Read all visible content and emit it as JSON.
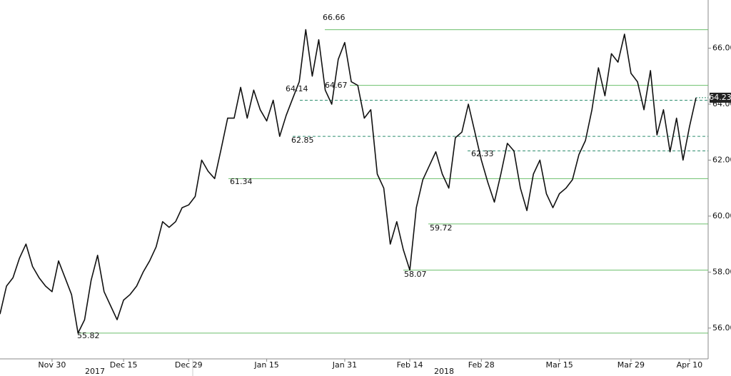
{
  "chart_data": {
    "type": "line",
    "categories": [
      null,
      null,
      null,
      null,
      null,
      null,
      null,
      null,
      "Nov 30",
      null,
      null,
      null,
      null,
      null,
      null,
      null,
      null,
      null,
      null,
      "Dec 15",
      null,
      null,
      null,
      null,
      null,
      null,
      null,
      null,
      null,
      "Dec 29",
      null,
      null,
      null,
      null,
      null,
      null,
      null,
      null,
      null,
      null,
      null,
      "Jan 15",
      null,
      null,
      null,
      null,
      null,
      null,
      null,
      null,
      null,
      null,
      null,
      "Jan 31",
      null,
      null,
      null,
      null,
      null,
      null,
      null,
      null,
      null,
      "Feb 14",
      null,
      null,
      null,
      null,
      null,
      null,
      null,
      null,
      null,
      null,
      "Feb 28",
      null,
      null,
      null,
      null,
      null,
      null,
      null,
      null,
      null,
      null,
      null,
      "Mar 15",
      null,
      null,
      null,
      null,
      null,
      null,
      null,
      null,
      null,
      null,
      "Mar 29",
      null,
      null,
      null,
      null,
      null,
      null,
      null,
      null,
      "Apr 10",
      null
    ],
    "values": [
      56.5,
      57.5,
      57.8,
      58.5,
      59.0,
      58.2,
      57.8,
      57.5,
      57.3,
      58.4,
      57.8,
      57.2,
      55.82,
      56.3,
      57.7,
      58.6,
      57.3,
      56.8,
      56.3,
      57.0,
      57.2,
      57.5,
      58.0,
      58.4,
      58.9,
      59.8,
      59.6,
      59.8,
      60.3,
      60.4,
      60.7,
      62.0,
      61.6,
      61.34,
      62.4,
      63.5,
      63.5,
      64.6,
      63.5,
      64.5,
      63.8,
      63.4,
      64.14,
      62.85,
      63.6,
      64.2,
      64.8,
      66.66,
      65.0,
      66.3,
      64.5,
      64.0,
      65.6,
      66.2,
      64.8,
      64.67,
      63.5,
      63.8,
      61.5,
      61.0,
      59.0,
      59.8,
      58.8,
      58.07,
      60.3,
      61.3,
      61.8,
      62.3,
      61.5,
      61.0,
      62.8,
      63.0,
      64.0,
      63.0,
      62.0,
      61.2,
      60.5,
      61.5,
      62.6,
      62.33,
      61.0,
      60.2,
      61.5,
      62.0,
      60.8,
      60.3,
      60.8,
      61.0,
      61.3,
      62.2,
      62.7,
      63.8,
      65.3,
      64.3,
      65.8,
      65.5,
      66.5,
      65.1,
      64.8,
      63.8,
      65.2,
      62.9,
      63.8,
      62.3,
      63.5,
      62.0,
      63.2,
      64.23
    ],
    "color": "#111111",
    "years": [
      "2017",
      "2018"
    ],
    "levels": [
      {
        "value": 66.66,
        "style": "solid"
      },
      {
        "value": 64.67,
        "style": "solid"
      },
      {
        "value": 64.14,
        "style": "dashed"
      },
      {
        "value": 62.85,
        "style": "dashed"
      },
      {
        "value": 62.33,
        "style": "dashed"
      },
      {
        "value": 61.34,
        "style": "solid"
      },
      {
        "value": 59.72,
        "style": "solid"
      },
      {
        "value": 58.07,
        "style": "solid"
      },
      {
        "value": 55.82,
        "style": "solid"
      }
    ],
    "level_color": "#6cbf6c",
    "dashed_color": "#2f8f6f",
    "ylim": [
      54.9,
      67.72
    ],
    "yticks": [
      {
        "value": 56,
        "label": "56.00"
      },
      {
        "value": 58,
        "label": "58.00"
      },
      {
        "value": 60,
        "label": "60.00"
      },
      {
        "value": 62,
        "label": "62.00"
      },
      {
        "value": 64,
        "label": "64.00"
      },
      {
        "value": 66,
        "label": "66.00"
      }
    ]
  }
}
